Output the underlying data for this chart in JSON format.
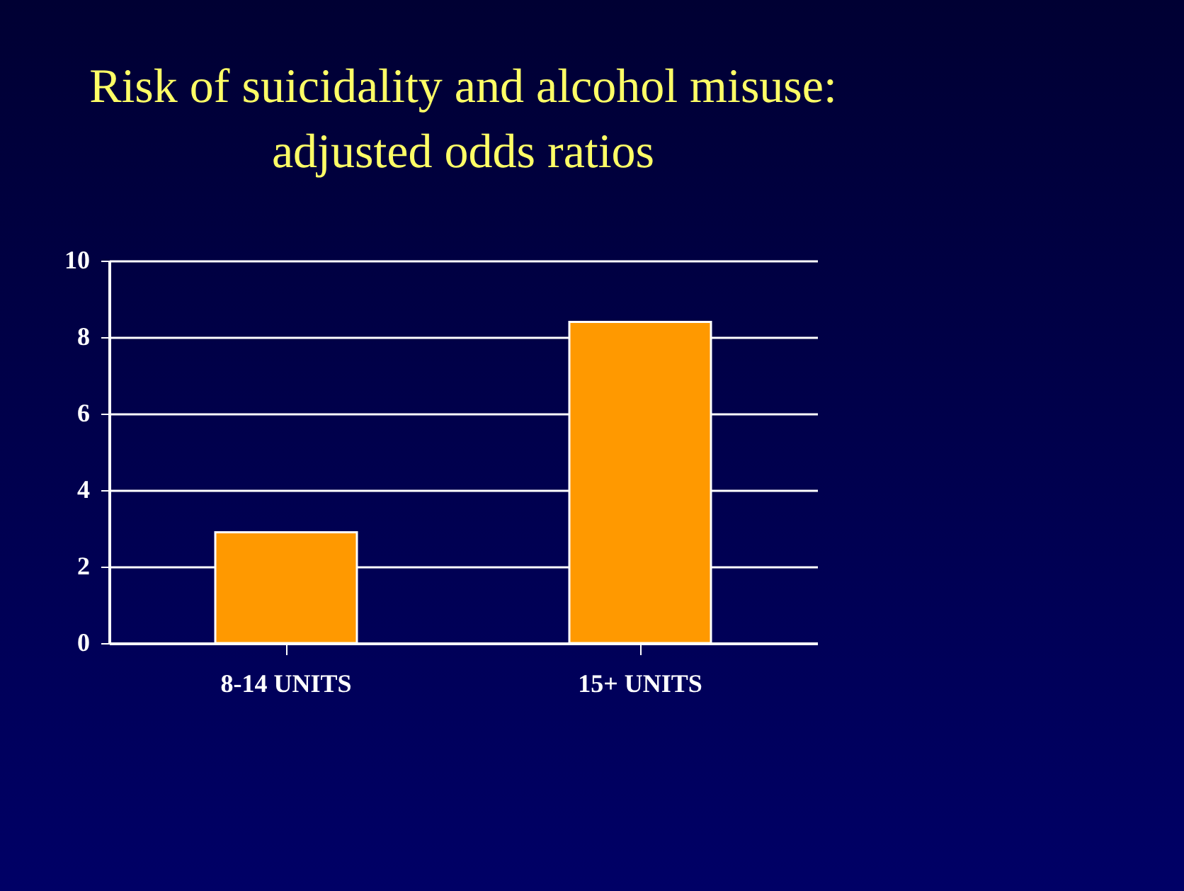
{
  "chart_data": {
    "type": "bar",
    "title": "Risk of suicidality and alcohol misuse: adjusted odds ratios",
    "categories": [
      "8-14 UNITS",
      "15+ UNITS"
    ],
    "values": [
      2.9,
      8.4
    ],
    "color": "#ff9900",
    "ylim": [
      0,
      10
    ],
    "yticks": [
      0,
      2,
      4,
      6,
      8,
      10
    ],
    "grid": "y"
  }
}
